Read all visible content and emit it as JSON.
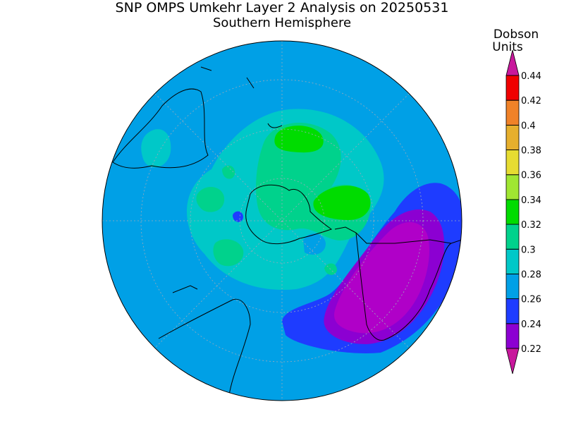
{
  "map": {
    "title": "SNP OMPS Umkehr Layer 2 Analysis on 20250531",
    "subtitle": "Southern Hemisphere",
    "colorbar": {
      "title": [
        "Dobson",
        "Units"
      ],
      "ticks": [
        0.22,
        0.24,
        0.26,
        0.28,
        0.3,
        0.32,
        0.34,
        0.36,
        0.38,
        0.4,
        0.42,
        0.44
      ],
      "colors": [
        "#8c00d2",
        "#1e3cff",
        "#00a0e6",
        "#00c8c8",
        "#00d28c",
        "#00dc00",
        "#a0e632",
        "#e6dc32",
        "#e6af2d",
        "#f08228",
        "#f00000"
      ],
      "under_color": "#c8189c",
      "over_color": "#c8189c"
    }
  }
}
